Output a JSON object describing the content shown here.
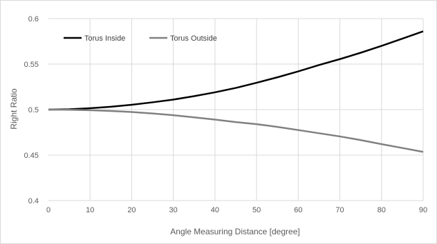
{
  "chart_data": {
    "type": "line",
    "xlabel": "Angle Measuring Distance [degree]",
    "ylabel": "Right Ratio",
    "xlim": [
      0,
      90
    ],
    "ylim": [
      0.4,
      0.6
    ],
    "xticks": [
      0,
      10,
      20,
      30,
      40,
      50,
      60,
      70,
      80,
      90
    ],
    "xtick_labels": [
      "0",
      "10",
      "20",
      "30",
      "40",
      "50",
      "60",
      "70",
      "80",
      "90"
    ],
    "yticks": [
      0.4,
      0.45,
      0.5,
      0.55,
      0.6
    ],
    "ytick_labels": [
      "0.4",
      "0.45",
      "0.5",
      "0.55",
      "0.6"
    ],
    "grid": true,
    "legend_position": "top-left",
    "x": [
      0,
      5,
      10,
      15,
      20,
      25,
      30,
      35,
      40,
      45,
      50,
      55,
      60,
      65,
      70,
      75,
      80,
      85,
      90
    ],
    "series": [
      {
        "name": "Torus Inside",
        "color": "#000000",
        "values": [
          0.5,
          0.5004,
          0.5015,
          0.5031,
          0.5053,
          0.508,
          0.511,
          0.5148,
          0.519,
          0.5238,
          0.5295,
          0.5355,
          0.542,
          0.549,
          0.5555,
          0.5625,
          0.57,
          0.578,
          0.586
        ]
      },
      {
        "name": "Torus Outside",
        "color": "#808080",
        "values": [
          0.5,
          0.4998,
          0.4993,
          0.4985,
          0.4973,
          0.4957,
          0.4938,
          0.4915,
          0.489,
          0.4863,
          0.484,
          0.481,
          0.4775,
          0.474,
          0.4705,
          0.4665,
          0.462,
          0.4578,
          0.4535
        ]
      }
    ]
  }
}
